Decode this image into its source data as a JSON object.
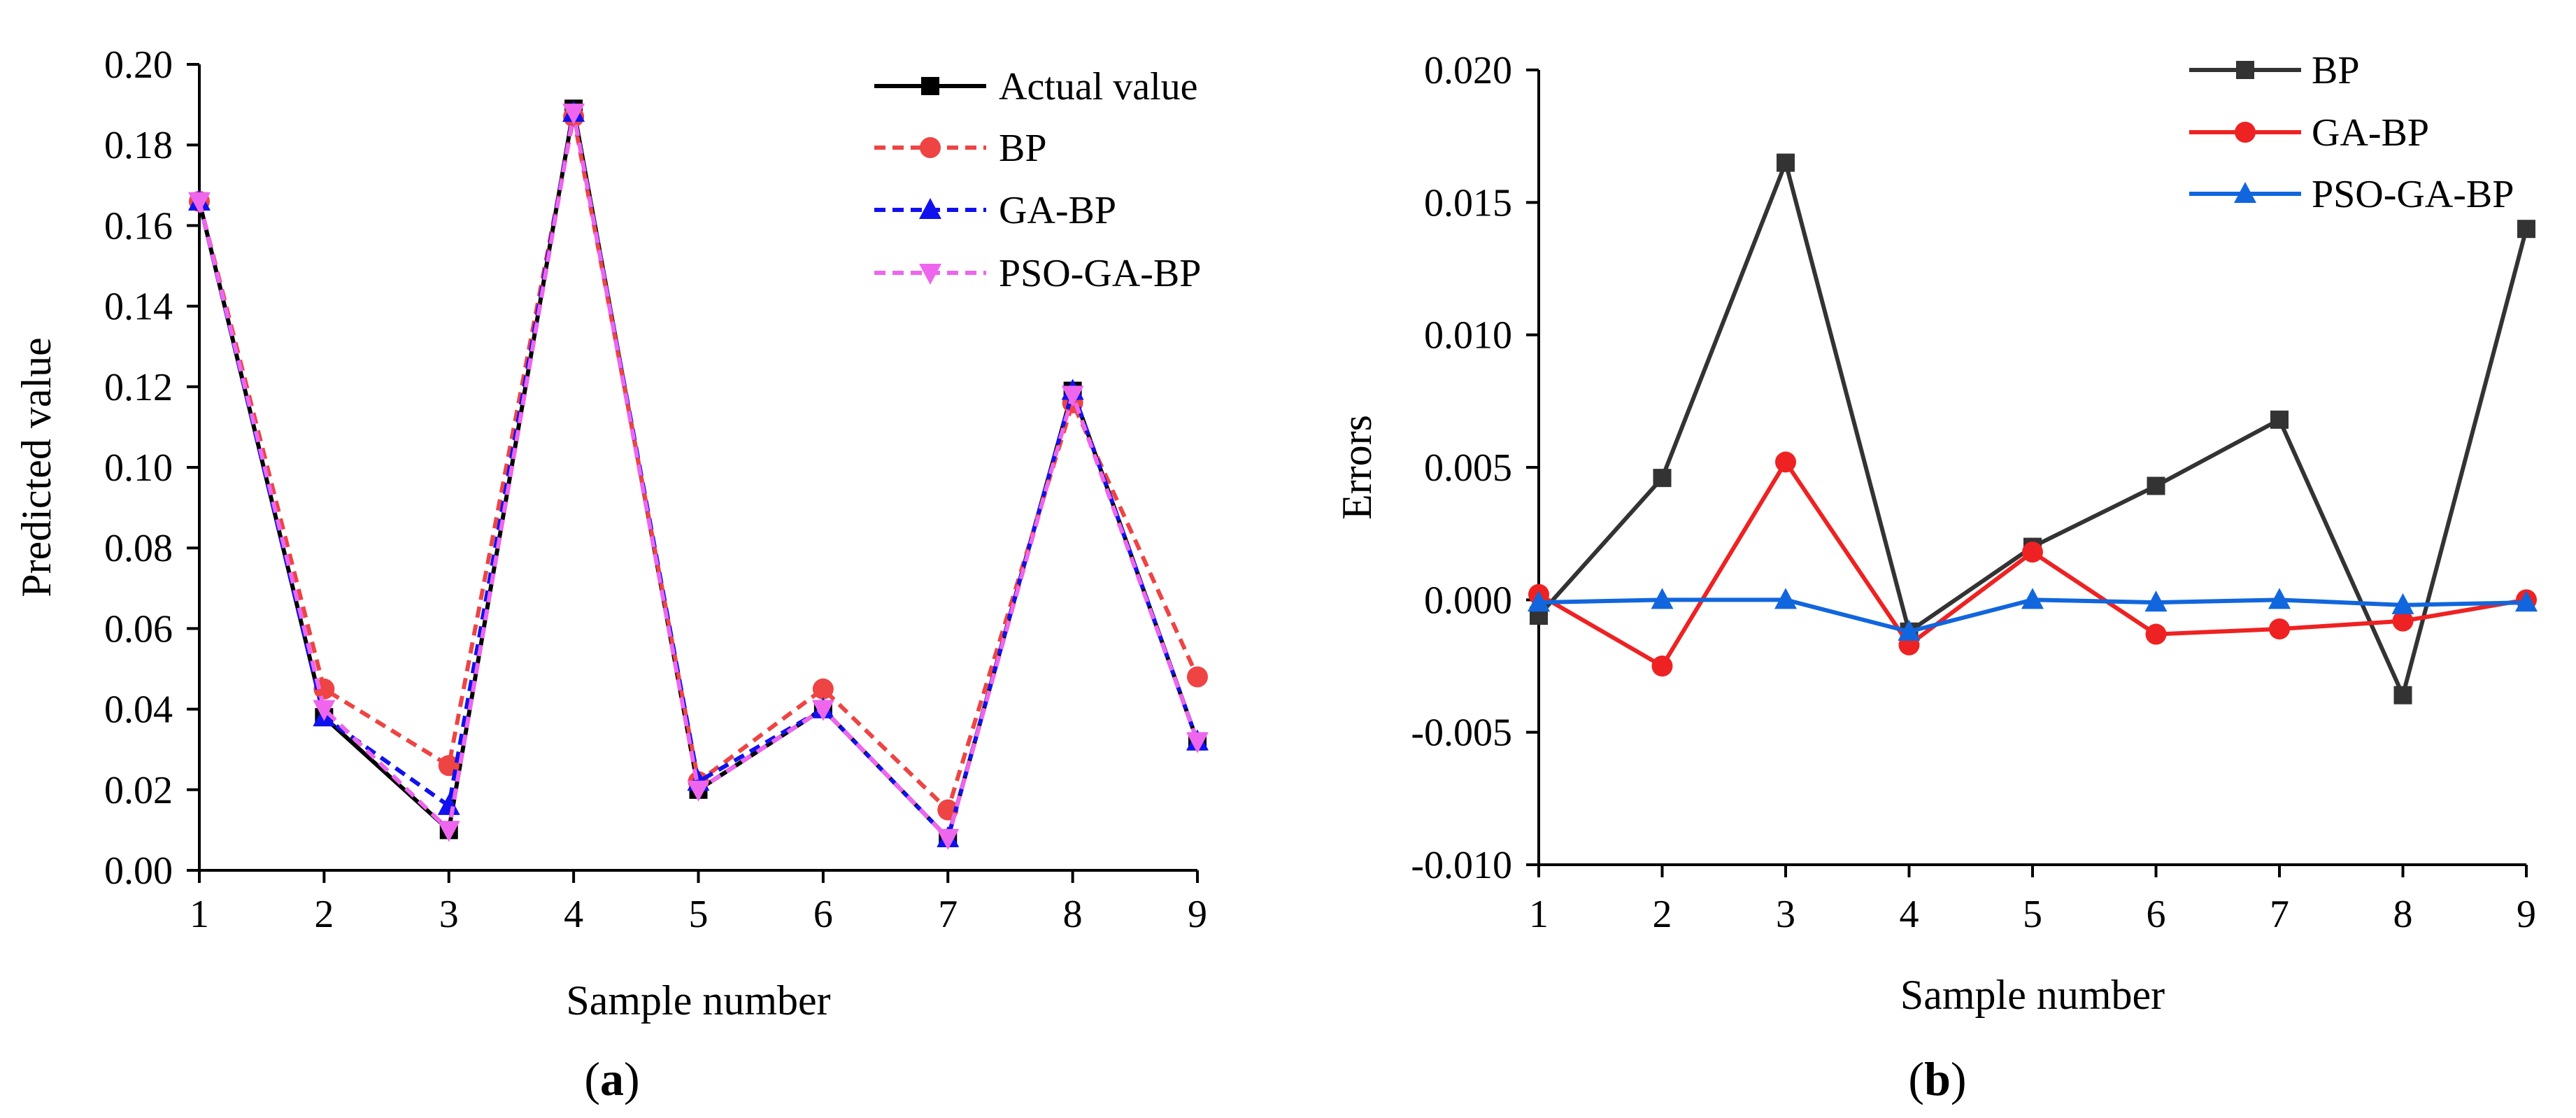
{
  "colors": {
    "actual": "#000000",
    "bp_a": "#ee4444",
    "gabp_a": "#1111ee",
    "psogabp_a": "#ee66ee",
    "bp_b": "#333333",
    "gabp_b": "#ee2222",
    "psogabp_b": "#1166dd"
  },
  "chart_data": [
    {
      "id": "a",
      "panel_label_open": "(",
      "panel_label_letter": "a",
      "panel_label_close": ")",
      "type": "line",
      "xlabel": "Sample number",
      "ylabel": "Predicted value",
      "xlim": [
        1,
        9
      ],
      "ylim": [
        0,
        0.2
      ],
      "x": [
        1,
        2,
        3,
        4,
        5,
        6,
        7,
        8,
        9
      ],
      "xticks": [
        "1",
        "2",
        "3",
        "4",
        "5",
        "6",
        "7",
        "8",
        "9"
      ],
      "yticks": [
        "0.00",
        "0.02",
        "0.04",
        "0.06",
        "0.08",
        "0.10",
        "0.12",
        "0.14",
        "0.16",
        "0.18",
        "0.20"
      ],
      "legend_position": "top-right",
      "series": [
        {
          "name": "Actual value",
          "style": "solid",
          "marker": "square",
          "color_key": "actual",
          "values": [
            0.166,
            0.038,
            0.01,
            0.189,
            0.02,
            0.04,
            0.008,
            0.119,
            0.032
          ]
        },
        {
          "name": "BP",
          "style": "dashed",
          "marker": "circle",
          "color_key": "bp_a",
          "values": [
            0.166,
            0.045,
            0.026,
            0.187,
            0.022,
            0.045,
            0.015,
            0.116,
            0.048
          ]
        },
        {
          "name": "GA-BP",
          "style": "dashed",
          "marker": "triangle-up",
          "color_key": "gabp_a",
          "values": [
            0.166,
            0.038,
            0.016,
            0.188,
            0.022,
            0.04,
            0.008,
            0.119,
            0.032
          ]
        },
        {
          "name": "PSO-GA-BP",
          "style": "dashed",
          "marker": "triangle-down",
          "color_key": "psogabp_a",
          "values": [
            0.166,
            0.04,
            0.01,
            0.188,
            0.02,
            0.04,
            0.008,
            0.118,
            0.032
          ]
        }
      ]
    },
    {
      "id": "b",
      "panel_label_open": "(",
      "panel_label_letter": "b",
      "panel_label_close": ")",
      "type": "line",
      "xlabel": "Sample number",
      "ylabel": "Errors",
      "xlim": [
        1,
        9
      ],
      "ylim": [
        -0.01,
        0.02
      ],
      "x": [
        1,
        2,
        3,
        4,
        5,
        6,
        7,
        8,
        9
      ],
      "xticks": [
        "1",
        "2",
        "3",
        "4",
        "5",
        "6",
        "7",
        "8",
        "9"
      ],
      "yticks": [
        "-0.010",
        "-0.005",
        "0.000",
        "0.005",
        "0.010",
        "0.015",
        "0.020"
      ],
      "legend_position": "top-right",
      "series": [
        {
          "name": "BP",
          "style": "solid",
          "marker": "square",
          "color_key": "bp_b",
          "values": [
            -0.0006,
            0.0046,
            0.0165,
            -0.0012,
            0.002,
            0.0043,
            0.0068,
            -0.0036,
            0.014
          ]
        },
        {
          "name": "GA-BP",
          "style": "solid",
          "marker": "circle",
          "color_key": "gabp_b",
          "values": [
            0.0002,
            -0.0025,
            0.0052,
            -0.0017,
            0.0018,
            -0.0013,
            -0.0011,
            -0.0008,
            0.0
          ]
        },
        {
          "name": "PSO-GA-BP",
          "style": "solid",
          "marker": "triangle-up",
          "color_key": "psogabp_b",
          "values": [
            -0.0001,
            0.0,
            0.0,
            -0.0012,
            0.0,
            -0.0001,
            0.0,
            -0.0002,
            -0.0001
          ]
        }
      ]
    }
  ]
}
